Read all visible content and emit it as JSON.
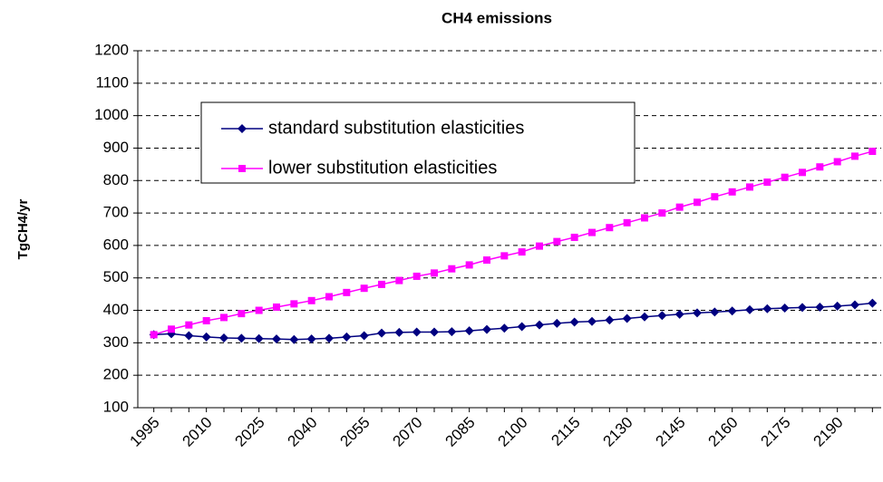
{
  "chart_data": {
    "type": "line",
    "title": "CH4 emissions",
    "y_label": "TgCH4/yr",
    "categories": [
      "1995",
      null,
      null,
      "2010",
      null,
      null,
      "2025",
      null,
      null,
      "2040",
      null,
      null,
      "2055",
      null,
      null,
      "2070",
      null,
      null,
      "2085",
      null,
      null,
      "2100",
      null,
      null,
      "2115",
      null,
      null,
      "2130",
      null,
      null,
      "2145",
      null,
      null,
      "2160",
      null,
      null,
      "2175",
      null,
      null,
      "2190",
      null,
      null
    ],
    "series": [
      {
        "name": "standard substitution elasticities",
        "color": "#000080",
        "marker": "diamond",
        "values": [
          325,
          328,
          322,
          318,
          315,
          314,
          313,
          312,
          310,
          312,
          314,
          318,
          322,
          330,
          332,
          333,
          333,
          334,
          337,
          341,
          345,
          350,
          355,
          360,
          364,
          366,
          370,
          375,
          380,
          384,
          388,
          392,
          395,
          398,
          402,
          405,
          407,
          409,
          410,
          413,
          417,
          422
        ]
      },
      {
        "name": "lower substitution elasticities",
        "color": "#ff00ff",
        "marker": "square",
        "values": [
          325,
          342,
          355,
          368,
          378,
          390,
          400,
          410,
          420,
          430,
          442,
          455,
          468,
          480,
          492,
          505,
          515,
          528,
          540,
          555,
          568,
          580,
          598,
          612,
          625,
          640,
          655,
          670,
          685,
          700,
          718,
          733,
          750,
          765,
          780,
          795,
          810,
          825,
          842,
          858,
          875,
          890
        ]
      }
    ],
    "ylim": [
      100,
      1200
    ],
    "yticks": [
      100,
      200,
      300,
      400,
      500,
      600,
      700,
      800,
      900,
      1000,
      1100,
      1200
    ],
    "grid": true
  }
}
